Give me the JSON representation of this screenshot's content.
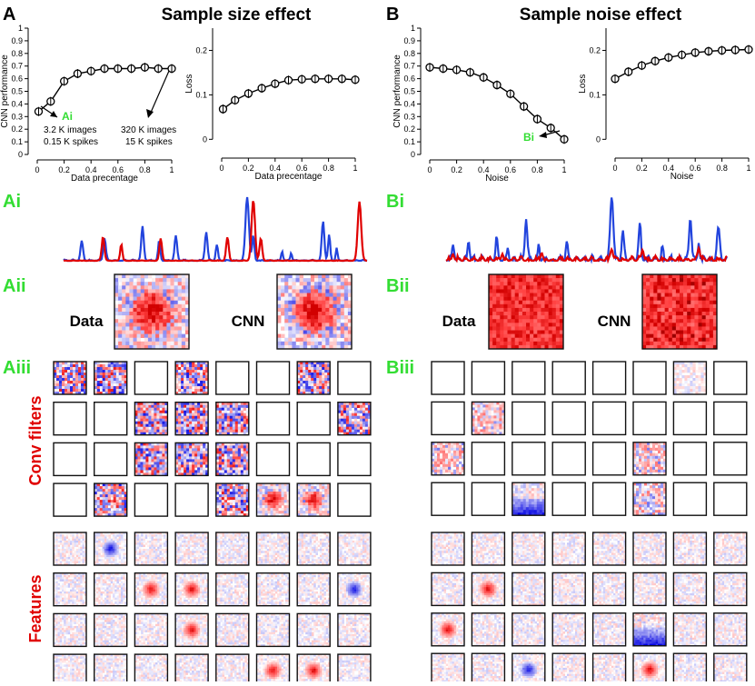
{
  "panels": {
    "A": {
      "letter": "A",
      "title": "Sample size effect",
      "sub_trace": "Ai",
      "sub_rf": "Aii",
      "sub_grid": "Aiii",
      "annotations": [
        {
          "tag": "Ai",
          "lines": [
            "3.2 K images",
            "0.15 K spikes"
          ]
        },
        {
          "tag": "",
          "lines": [
            "320 K images",
            "15 K spikes"
          ]
        }
      ]
    },
    "B": {
      "letter": "B",
      "title": "Sample noise effect",
      "sub_trace": "Bi",
      "sub_rf": "Bii",
      "sub_grid": "Biii",
      "annotations": [
        {
          "tag": "Bi",
          "lines": []
        }
      ]
    }
  },
  "rf_labels": {
    "data": "Data",
    "cnn": "CNN"
  },
  "row_labels": {
    "conv": "Conv filters",
    "features": "Features"
  },
  "colors": {
    "green": "#33dd33",
    "red": "#e00000",
    "blue": "#2244dd",
    "black": "#000000"
  },
  "chart_data": [
    {
      "id": "A-perf",
      "type": "line",
      "title": "",
      "xlabel": "Data precentage",
      "ylabel": "CNN performance",
      "x": [
        0.01,
        0.1,
        0.2,
        0.3,
        0.4,
        0.5,
        0.6,
        0.7,
        0.8,
        0.9,
        1.0
      ],
      "y": [
        0.34,
        0.42,
        0.58,
        0.64,
        0.66,
        0.68,
        0.68,
        0.68,
        0.69,
        0.68,
        0.68
      ],
      "xlim": [
        0,
        1
      ],
      "ylim": [
        0,
        1
      ],
      "xticks": [
        "0",
        "0.2",
        "0.4",
        "0.6",
        "0.8",
        "1"
      ],
      "yticks": [
        "0",
        "0.1",
        "0.2",
        "0.3",
        "0.4",
        "0.5",
        "0.6",
        "0.7",
        "0.8",
        "0.9",
        "1"
      ]
    },
    {
      "id": "A-loss",
      "type": "line",
      "title": "",
      "xlabel": "Data precentage",
      "ylabel": "Loss",
      "x": [
        0.01,
        0.1,
        0.2,
        0.3,
        0.4,
        0.5,
        0.6,
        0.7,
        0.8,
        0.9,
        1.0
      ],
      "y": [
        0.068,
        0.088,
        0.103,
        0.115,
        0.125,
        0.133,
        0.135,
        0.136,
        0.136,
        0.136,
        0.134
      ],
      "xlim": [
        0,
        1
      ],
      "ylim": [
        -0.03,
        0.25
      ],
      "xticks": [
        "0",
        "0.2",
        "0.4",
        "0.6",
        "0.8",
        "1"
      ],
      "yticks": [
        "0",
        "0.1",
        "0.2"
      ]
    },
    {
      "id": "B-perf",
      "type": "line",
      "title": "",
      "xlabel": "Noise",
      "ylabel": "CNN performance",
      "x": [
        0.0,
        0.1,
        0.2,
        0.3,
        0.4,
        0.5,
        0.6,
        0.7,
        0.8,
        0.9,
        1.0
      ],
      "y": [
        0.69,
        0.68,
        0.67,
        0.65,
        0.61,
        0.55,
        0.48,
        0.38,
        0.28,
        0.21,
        0.12
      ],
      "xlim": [
        0,
        1
      ],
      "ylim": [
        0,
        1
      ],
      "xticks": [
        "0",
        "0.2",
        "0.4",
        "0.6",
        "0.8",
        "1"
      ],
      "yticks": [
        "0",
        "0.1",
        "0.2",
        "0.3",
        "0.4",
        "0.5",
        "0.6",
        "0.7",
        "0.8",
        "0.9",
        "1"
      ]
    },
    {
      "id": "B-loss",
      "type": "line",
      "title": "",
      "xlabel": "Noise",
      "ylabel": "Loss",
      "x": [
        0.0,
        0.1,
        0.2,
        0.3,
        0.4,
        0.5,
        0.6,
        0.7,
        0.8,
        0.9,
        1.0
      ],
      "y": [
        0.136,
        0.152,
        0.166,
        0.176,
        0.184,
        0.19,
        0.195,
        0.198,
        0.2,
        0.201,
        0.202
      ],
      "xlim": [
        0,
        1
      ],
      "ylim": [
        -0.03,
        0.25
      ],
      "xticks": [
        "0",
        "0.2",
        "0.4",
        "0.6",
        "0.8",
        "1"
      ],
      "yticks": [
        "0",
        "0.1",
        "0.2"
      ]
    }
  ],
  "filters": {
    "A_conv": [
      "noise-strong",
      "noise-blue",
      "empty",
      "noise-strong",
      "empty",
      "empty",
      "noise-strong",
      "empty",
      "empty",
      "empty",
      "noise-strong",
      "noise-strong",
      "noise-strong",
      "empty",
      "empty",
      "noise-strong",
      "empty",
      "empty",
      "noise-strong",
      "noise-strong",
      "noise-strong",
      "empty",
      "empty",
      "empty",
      "empty",
      "noise-strong",
      "empty",
      "empty",
      "noise-strong",
      "red-center",
      "red-center",
      "empty"
    ],
    "A_feat": [
      "faint",
      "blue-spot",
      "faint",
      "faint",
      "faint",
      "faint",
      "faint",
      "faint",
      "faint",
      "faint",
      "red-spot",
      "red-spot",
      "faint",
      "faint",
      "faint",
      "blue-spot",
      "faint",
      "faint",
      "faint",
      "red-spot",
      "faint",
      "faint",
      "faint",
      "faint",
      "faint",
      "faint",
      "faint",
      "faint",
      "faint",
      "red-spot",
      "red-spot",
      "faint"
    ],
    "B_conv": [
      "empty",
      "empty",
      "empty",
      "empty",
      "empty",
      "empty",
      "faint",
      "empty",
      "empty",
      "noise-light",
      "empty",
      "empty",
      "empty",
      "empty",
      "empty",
      "empty",
      "noise-light",
      "empty",
      "empty",
      "empty",
      "empty",
      "noise-light",
      "empty",
      "empty",
      "empty",
      "empty",
      "blue-grad",
      "empty",
      "empty",
      "noise-light",
      "empty",
      "empty"
    ],
    "B_feat": [
      "faint",
      "faint",
      "faint",
      "faint",
      "faint",
      "faint",
      "faint",
      "faint",
      "faint",
      "red-spot",
      "faint",
      "faint",
      "faint",
      "faint",
      "faint",
      "faint",
      "red-spot",
      "faint",
      "faint",
      "faint",
      "faint",
      "blue-grad",
      "faint",
      "faint",
      "faint",
      "faint",
      "blue-spot",
      "faint",
      "faint",
      "red-spot",
      "faint",
      "faint"
    ]
  }
}
